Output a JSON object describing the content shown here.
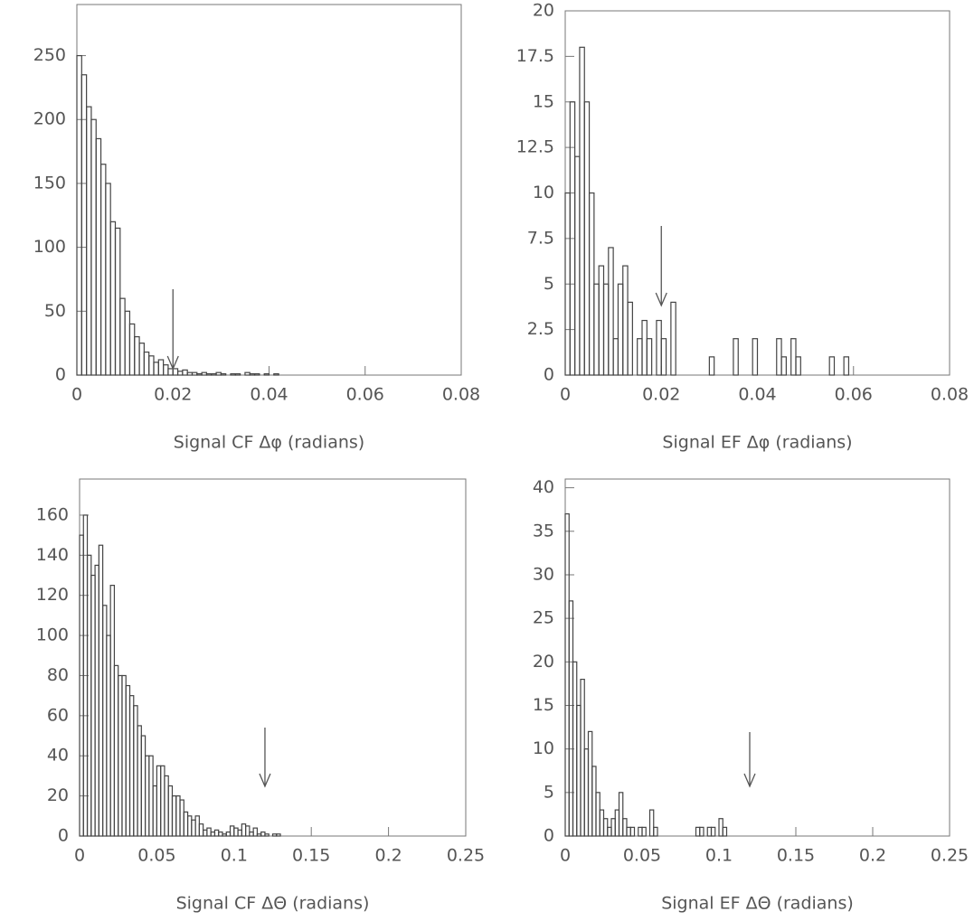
{
  "chart_data": [
    {
      "type": "histogram",
      "x_label": "Signal CF Δφ (radians)",
      "color": "#444444",
      "xlim": [
        0,
        0.08
      ],
      "ylim": [
        0,
        290
      ],
      "xticks": [
        0,
        0.02,
        0.04,
        0.06,
        0.08
      ],
      "yticks": [
        0,
        50,
        100,
        150,
        200,
        250
      ],
      "arrow_x": 0.02,
      "bins": [
        0,
        0.001,
        0.002,
        0.003,
        0.004,
        0.005,
        0.006,
        0.007,
        0.008,
        0.009,
        0.01,
        0.011,
        0.012,
        0.013,
        0.014,
        0.015,
        0.016,
        0.017,
        0.018,
        0.019,
        0.02,
        0.021,
        0.022,
        0.023,
        0.024,
        0.025,
        0.026,
        0.027,
        0.028,
        0.029,
        0.03,
        0.031,
        0.032,
        0.033,
        0.034,
        0.035,
        0.036,
        0.037,
        0.038,
        0.039,
        0.04,
        0.041,
        0.042
      ],
      "values": [
        250,
        235,
        210,
        200,
        185,
        165,
        150,
        120,
        115,
        60,
        50,
        40,
        30,
        25,
        18,
        15,
        10,
        12,
        8,
        5,
        5,
        3,
        4,
        2,
        2,
        1,
        2,
        1,
        1,
        2,
        1,
        0,
        1,
        1,
        0,
        2,
        1,
        1,
        0,
        1,
        0,
        1
      ]
    },
    {
      "type": "histogram",
      "x_label": "Signal EF Δφ (radians)",
      "color": "#444444",
      "xlim": [
        0,
        0.08
      ],
      "ylim": [
        0,
        20
      ],
      "xticks": [
        0,
        0.02,
        0.04,
        0.06,
        0.08
      ],
      "yticks": [
        0,
        2.5,
        5,
        7.5,
        10,
        12.5,
        15,
        17.5,
        20
      ],
      "arrow_x": 0.02,
      "bins": [
        0,
        0.001,
        0.002,
        0.003,
        0.004,
        0.005,
        0.006,
        0.007,
        0.008,
        0.009,
        0.01,
        0.011,
        0.012,
        0.013,
        0.014,
        0.015,
        0.016,
        0.017,
        0.018,
        0.019,
        0.02,
        0.021,
        0.022,
        0.023,
        0.024,
        0.025,
        0.026,
        0.027,
        0.028,
        0.029,
        0.03,
        0.031,
        0.032,
        0.033,
        0.034,
        0.035,
        0.036,
        0.037,
        0.038,
        0.039,
        0.04,
        0.041,
        0.042,
        0.043,
        0.044,
        0.045,
        0.046,
        0.047,
        0.048,
        0.049,
        0.05,
        0.051,
        0.052,
        0.053,
        0.054,
        0.055,
        0.056,
        0.057,
        0.058,
        0.059,
        0.06
      ],
      "values": [
        10,
        15,
        12,
        18,
        15,
        10,
        5,
        6,
        5,
        7,
        2,
        5,
        6,
        4,
        0,
        2,
        3,
        2,
        0,
        3,
        2,
        0,
        4,
        0,
        0,
        0,
        0,
        0,
        0,
        0,
        1,
        0,
        0,
        0,
        0,
        2,
        0,
        0,
        0,
        2,
        0,
        0,
        0,
        0,
        2,
        1,
        0,
        2,
        1,
        0,
        0,
        0,
        0,
        0,
        0,
        1,
        0,
        0,
        1,
        0
      ]
    },
    {
      "type": "histogram",
      "x_label": "Signal CF ΔΘ (radians)",
      "color": "#444444",
      "xlim": [
        0,
        0.25
      ],
      "ylim": [
        0,
        178
      ],
      "xticks": [
        0,
        0.05,
        0.1,
        0.15,
        0.2,
        0.25
      ],
      "yticks": [
        0,
        20,
        40,
        60,
        80,
        100,
        120,
        140,
        160
      ],
      "arrow_x": 0.12,
      "bins": [
        0,
        0.0025,
        0.005,
        0.0075,
        0.01,
        0.0125,
        0.015,
        0.0175,
        0.02,
        0.0225,
        0.025,
        0.0275,
        0.03,
        0.0325,
        0.035,
        0.0375,
        0.04,
        0.0425,
        0.045,
        0.0475,
        0.05,
        0.0525,
        0.055,
        0.0575,
        0.06,
        0.0625,
        0.065,
        0.0675,
        0.07,
        0.0725,
        0.075,
        0.0775,
        0.08,
        0.0825,
        0.085,
        0.0875,
        0.09,
        0.0925,
        0.095,
        0.0975,
        0.1,
        0.1025,
        0.105,
        0.1075,
        0.11,
        0.1125,
        0.115,
        0.1175,
        0.12,
        0.1225,
        0.125,
        0.1275,
        0.13
      ],
      "values": [
        150,
        160,
        140,
        130,
        135,
        145,
        115,
        100,
        125,
        85,
        80,
        80,
        75,
        70,
        65,
        55,
        50,
        40,
        40,
        25,
        35,
        35,
        30,
        25,
        20,
        20,
        18,
        12,
        10,
        8,
        10,
        6,
        3,
        4,
        2,
        3,
        2,
        1,
        2,
        5,
        4,
        3,
        6,
        5,
        2,
        4,
        1,
        2,
        1,
        0,
        1,
        1
      ]
    },
    {
      "type": "histogram",
      "x_label": "Signal EF ΔΘ (radians)",
      "color": "#444444",
      "xlim": [
        0,
        0.25
      ],
      "ylim": [
        0,
        41
      ],
      "xticks": [
        0,
        0.05,
        0.1,
        0.15,
        0.2,
        0.25
      ],
      "yticks": [
        0,
        5,
        10,
        15,
        20,
        25,
        30,
        35,
        40
      ],
      "arrow_x": 0.12,
      "bins": [
        0,
        0.0025,
        0.005,
        0.0075,
        0.01,
        0.0125,
        0.015,
        0.0175,
        0.02,
        0.0225,
        0.025,
        0.0275,
        0.03,
        0.0325,
        0.035,
        0.0375,
        0.04,
        0.0425,
        0.045,
        0.0475,
        0.05,
        0.0525,
        0.055,
        0.0575,
        0.06,
        0.0625,
        0.065,
        0.0675,
        0.07,
        0.0725,
        0.075,
        0.0775,
        0.08,
        0.0825,
        0.085,
        0.0875,
        0.09,
        0.0925,
        0.095,
        0.0975,
        0.1,
        0.1025,
        0.105
      ],
      "values": [
        37,
        27,
        20,
        15,
        18,
        10,
        12,
        8,
        5,
        3,
        2,
        1,
        2,
        3,
        5,
        2,
        1,
        1,
        0,
        1,
        1,
        0,
        3,
        1,
        0,
        0,
        0,
        0,
        0,
        0,
        0,
        0,
        0,
        0,
        1,
        1,
        0,
        1,
        1,
        0,
        2,
        1
      ]
    }
  ]
}
